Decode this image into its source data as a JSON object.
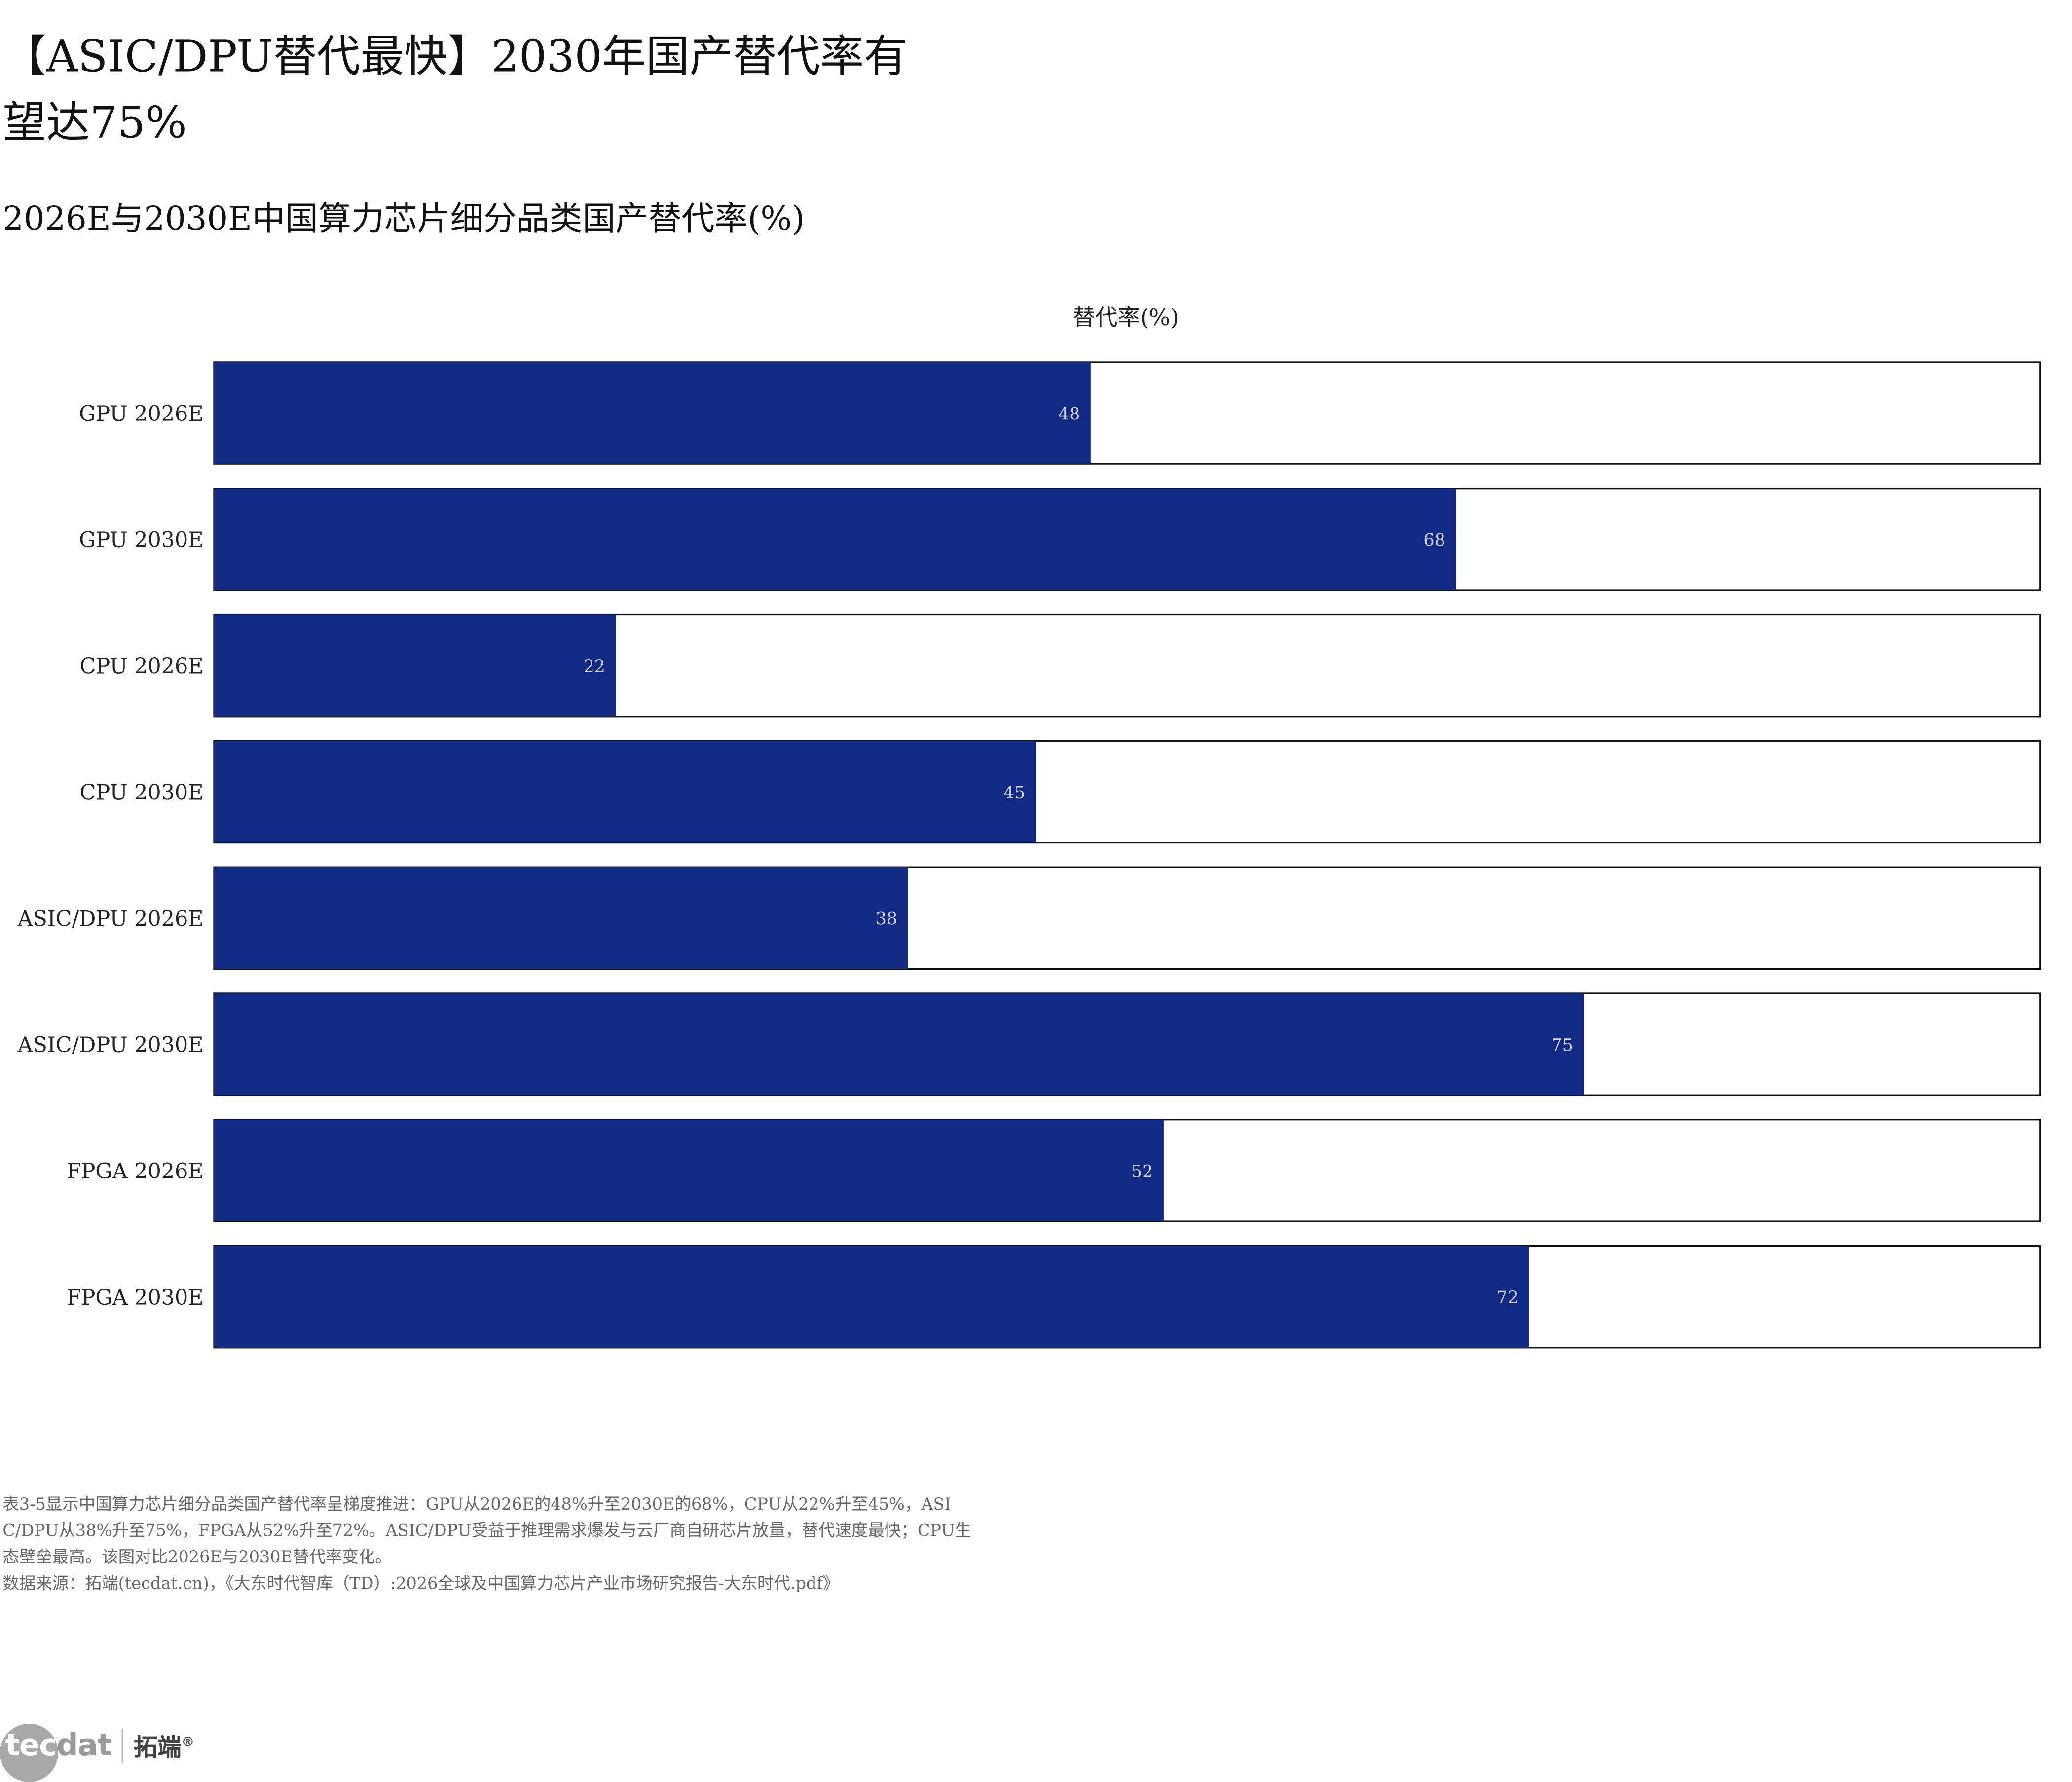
{
  "headline": "【ASIC/DPU替代最快】2030年国产替代率有望达75%",
  "chart_data": {
    "type": "bar",
    "orientation": "horizontal",
    "title": "2026E与2030E中国算力芯片细分品类国产替代率(%)",
    "xlabel": "替代率(%)",
    "ylabel": "",
    "xlim": [
      0,
      100
    ],
    "categories": [
      "GPU 2026E",
      "GPU 2030E",
      "CPU 2026E",
      "CPU 2030E",
      "ASIC/DPU 2026E",
      "ASIC/DPU 2030E",
      "FPGA 2026E",
      "FPGA 2030E"
    ],
    "values": [
      48,
      68,
      22,
      45,
      38,
      75,
      52,
      72
    ],
    "bar_color": "#132a85",
    "track_color": "#ffffff",
    "track_border": "#111111",
    "label_color": "#d0d4e6",
    "grid": false,
    "legend": "none"
  },
  "notes": {
    "line1": "表3-5显示中国算力芯片细分品类国产替代率呈梯度推进：GPU从2026E的48%升至2030E的68%，CPU从22%升至45%，ASI",
    "line2": "C/DPU从38%升至75%，FPGA从52%升至72%。ASIC/DPU受益于推理需求爆发与云厂商自研芯片放量，替代速度最快；CPU生",
    "line3": "态壁垒最高。该图对比2026E与2030E替代率变化。",
    "source": "数据来源：拓端(tecdat.cn)，《大东时代智库（TD）:2026全球及中国算力芯片产业市场研究报告-大东时代.pdf》"
  },
  "logo": {
    "tec": "tec",
    "dat": "dat",
    "cn": "拓端",
    "mark": "®"
  }
}
